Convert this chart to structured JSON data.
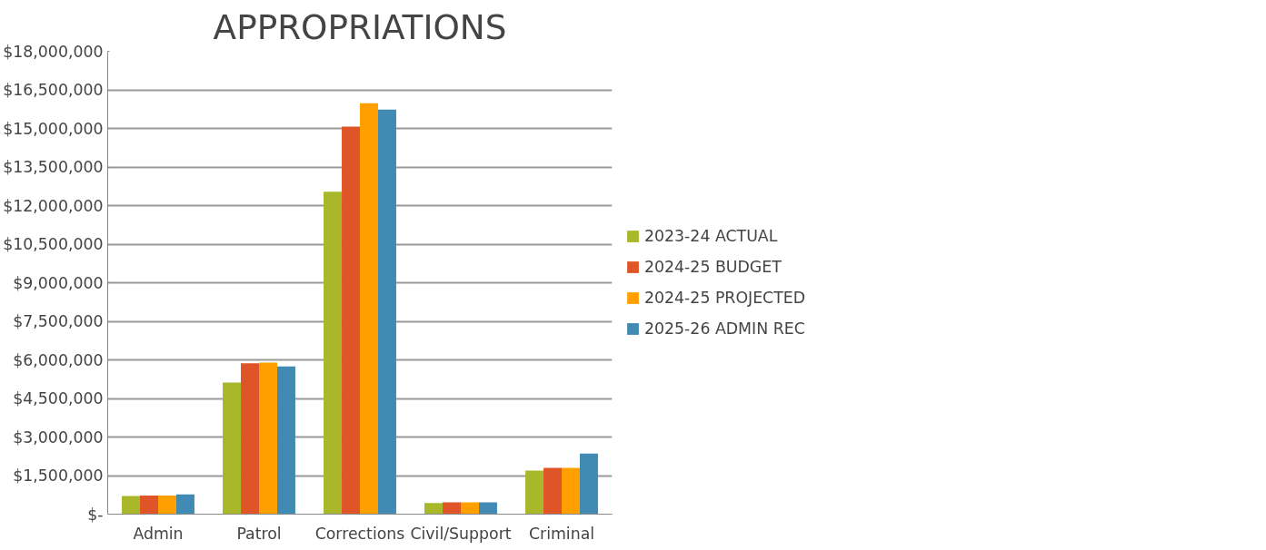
{
  "chart_data": {
    "type": "bar",
    "title": "APPROPRIATIONS",
    "categories": [
      "Admin",
      "Patrol",
      "Corrections",
      "Civil/Support",
      "Criminal"
    ],
    "series": [
      {
        "name": "2023-24 ACTUAL",
        "color": "#a8b82a",
        "values": [
          710000,
          5120000,
          12540000,
          430000,
          1690000
        ]
      },
      {
        "name": "2024-25 BUDGET",
        "color": "#e05528",
        "values": [
          720000,
          5870000,
          15070000,
          460000,
          1800000
        ]
      },
      {
        "name": "2024-25 PROJECTED",
        "color": "#ffa000",
        "values": [
          720000,
          5890000,
          15980000,
          460000,
          1800000
        ]
      },
      {
        "name": "2025-26 ADMIN REC",
        "color": "#418ab3",
        "values": [
          770000,
          5740000,
          15730000,
          460000,
          2360000
        ]
      }
    ],
    "ylim": [
      0,
      18000000
    ],
    "yticks": [
      {
        "value": 0,
        "label": "$-"
      },
      {
        "value": 1500000,
        "label": "$1,500,000"
      },
      {
        "value": 3000000,
        "label": "$3,000,000"
      },
      {
        "value": 4500000,
        "label": "$4,500,000"
      },
      {
        "value": 6000000,
        "label": "$6,000,000"
      },
      {
        "value": 7500000,
        "label": "$7,500,000"
      },
      {
        "value": 9000000,
        "label": "$9,000,000"
      },
      {
        "value": 10500000,
        "label": "$10,500,000"
      },
      {
        "value": 12000000,
        "label": "$12,000,000"
      },
      {
        "value": 13500000,
        "label": "$13,500,000"
      },
      {
        "value": 15000000,
        "label": "$15,000,000"
      },
      {
        "value": 16500000,
        "label": "$16,500,000"
      },
      {
        "value": 18000000,
        "label": "$18,000,000"
      }
    ],
    "grid": "y",
    "legend": "right"
  }
}
